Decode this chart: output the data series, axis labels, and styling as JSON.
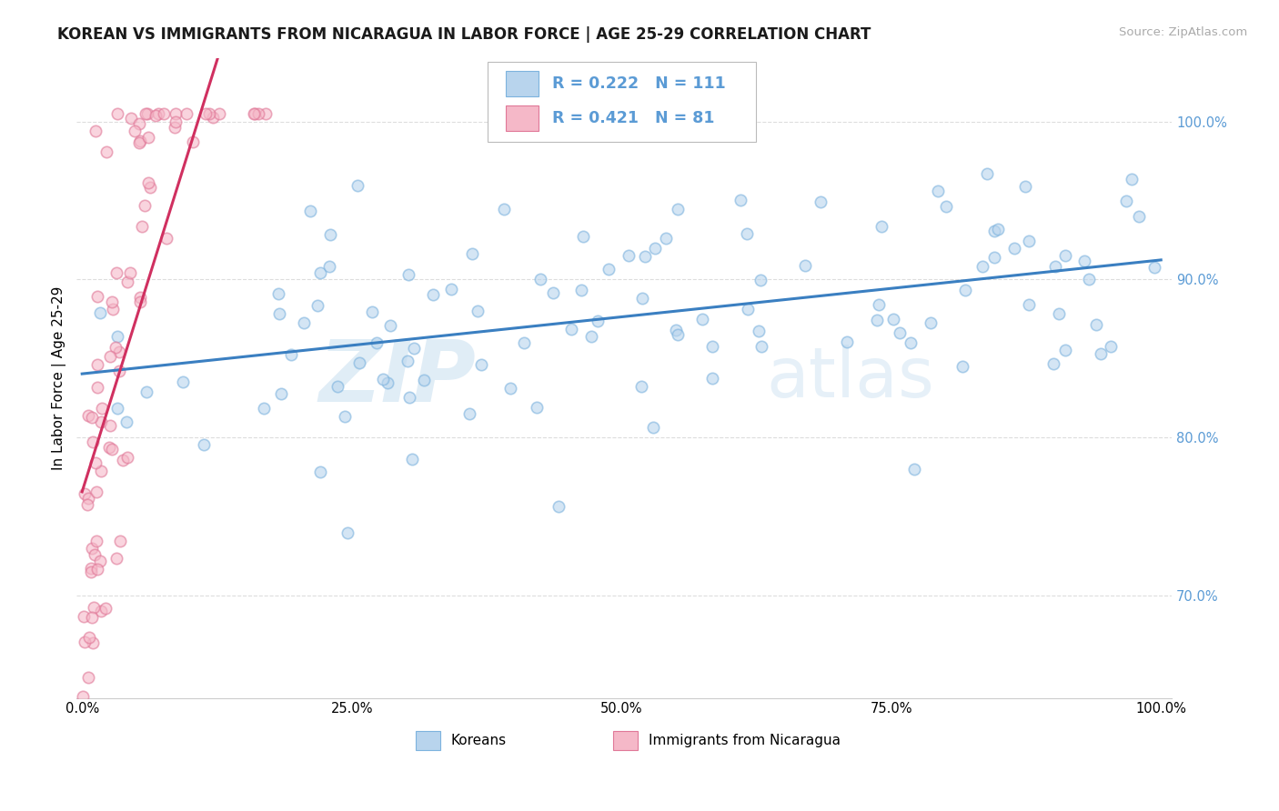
{
  "title": "KOREAN VS IMMIGRANTS FROM NICARAGUA IN LABOR FORCE | AGE 25-29 CORRELATION CHART",
  "source": "Source: ZipAtlas.com",
  "ylabel": "In Labor Force | Age 25-29",
  "xlim_min": -0.005,
  "xlim_max": 1.01,
  "ylim_min": 0.635,
  "ylim_max": 1.04,
  "xtick_vals": [
    0.0,
    0.25,
    0.5,
    0.75,
    1.0
  ],
  "xtick_labels": [
    "0.0%",
    "25.0%",
    "50.0%",
    "75.0%",
    "100.0%"
  ],
  "ytick_vals": [
    0.7,
    0.8,
    0.9,
    1.0
  ],
  "ytick_labels": [
    "70.0%",
    "80.0%",
    "90.0%",
    "100.0%"
  ],
  "korean_color": "#b8d4ed",
  "korean_edge_color": "#7db3de",
  "nicaragua_color": "#f5b8c8",
  "nicaragua_edge_color": "#e07898",
  "trend_korean_color": "#3a7fc1",
  "trend_nicaragua_color": "#d03060",
  "R_korean": 0.222,
  "N_korean": 111,
  "R_nicaragua": 0.421,
  "N_nicaragua": 81,
  "watermark_zip": "ZIP",
  "watermark_atlas": "atlas",
  "ytick_color": "#5b9bd5",
  "legend_R_color": "#5b9bd5",
  "title_fontsize": 12,
  "tick_fontsize": 10.5,
  "ylabel_fontsize": 11,
  "scatter_size": 80,
  "scatter_alpha": 0.6,
  "scatter_lw": 1.2
}
